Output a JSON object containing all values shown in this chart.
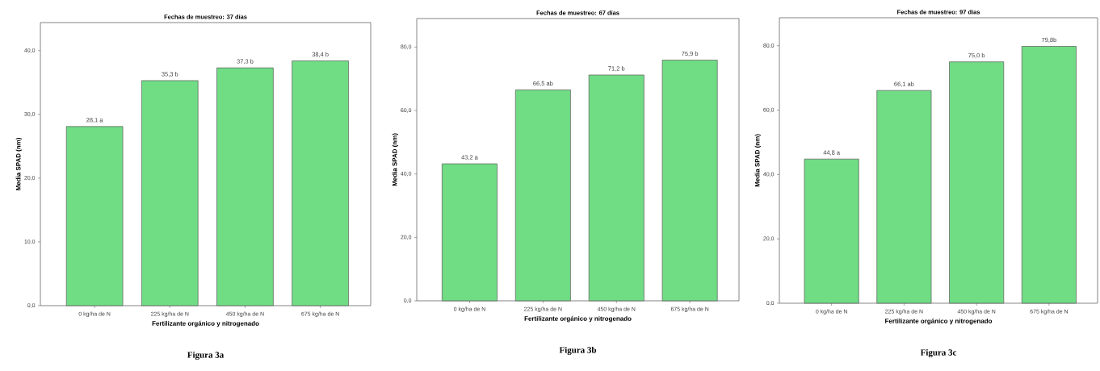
{
  "chart_data": [
    {
      "type": "bar",
      "title": "Fechas de muestreo: 37 días",
      "xlabel": "Fertilizante orgánico y nitrogenado",
      "ylabel": "Media SPAD (nm)",
      "categories": [
        "0 kg/ha de N",
        "225 kg/ha de N",
        "450 kg/ha de N",
        "675 kg/ha de N"
      ],
      "values": [
        28.1,
        35.3,
        37.3,
        38.4
      ],
      "value_labels": [
        "28,1  a",
        "35,3 b",
        "37,3 b",
        "38,4 b"
      ],
      "color": "#70dc84",
      "ylim": [
        0,
        44.4
      ],
      "yticks": [
        {
          "value": 0,
          "label": "0,0"
        },
        {
          "value": 10,
          "label": "10,0"
        },
        {
          "value": 20,
          "label": "20,0"
        },
        {
          "value": 30,
          "label": "30,0"
        },
        {
          "value": 40,
          "label": "40,0"
        }
      ],
      "annotations": [
        "Figura 3a"
      ]
    },
    {
      "type": "bar",
      "title": "Fechas de muestreo: 67 días",
      "xlabel": "Fertilizante orgánico y nitrogenado",
      "ylabel": "Media SPAD (nm)",
      "categories": [
        "0 kg/ha de N",
        "225 kg/ha de N",
        "450 kg/ha de N",
        "675 kg/ha de N"
      ],
      "values": [
        43.2,
        66.5,
        71.2,
        75.9
      ],
      "value_labels": [
        "43,2 a",
        "66,5 ab",
        "71,2 b",
        "75,9 b"
      ],
      "color": "#70dc84",
      "ylim": [
        0,
        89
      ],
      "yticks": [
        {
          "value": 0,
          "label": "0,0"
        },
        {
          "value": 20,
          "label": "20,0"
        },
        {
          "value": 40,
          "label": "40,0"
        },
        {
          "value": 60,
          "label": "60,0"
        },
        {
          "value": 80,
          "label": "80,0"
        }
      ],
      "annotations": [
        "Figura 3b"
      ]
    },
    {
      "type": "bar",
      "title": "Fechas de muestreo: 97 días",
      "xlabel": "Fertilizante orgánico y nitrogenado",
      "ylabel": "Media SPAD (nm)",
      "categories": [
        "0 kg/ha de N",
        "225 kg/ha de N",
        "450 kg/ha de N",
        "675 kg/ha de N"
      ],
      "values": [
        44.8,
        66.1,
        75.0,
        79.8
      ],
      "value_labels": [
        "44,8 a",
        "66,1 ab",
        "75,0 b",
        "79,8b"
      ],
      "color": "#70dc84",
      "ylim": [
        0,
        88.7
      ],
      "yticks": [
        {
          "value": 0,
          "label": "0,0"
        },
        {
          "value": 20,
          "label": "20,0"
        },
        {
          "value": 40,
          "label": "40,0"
        },
        {
          "value": 60,
          "label": "60,0"
        },
        {
          "value": 80,
          "label": "80,0"
        }
      ],
      "annotations": [
        "Figura 3c"
      ]
    }
  ]
}
